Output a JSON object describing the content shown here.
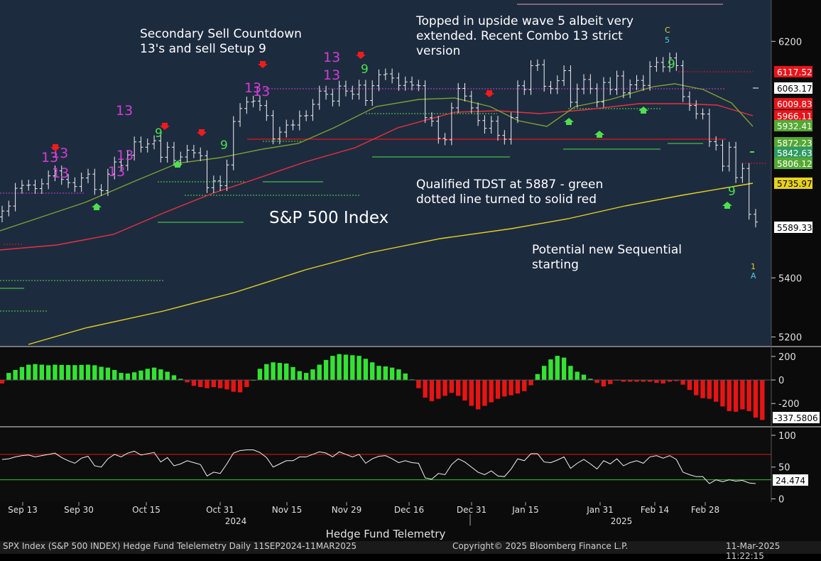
{
  "chart_data": [
    {
      "type": "candlestick",
      "title": "S&P 500 Index",
      "ylim": [
        5170,
        6340
      ],
      "x_tick_labels": [
        "Sep 13",
        "Sep 30",
        "Oct 15",
        "Oct 31",
        "Nov 15",
        "Nov 29",
        "Dec 16",
        "Dec 31",
        "Jan 15",
        "Jan 31",
        "Feb 14",
        "Feb 28"
      ],
      "year_labels": [
        "2024",
        "2025"
      ],
      "y_ticks": [
        5200,
        5400,
        6200
      ],
      "price_tags": [
        {
          "label": "6117.52",
          "color": "#e8141b"
        },
        {
          "label": "6063.17",
          "color": "#ffffff"
        },
        {
          "label": "6009.83",
          "color": "#e8141b"
        },
        {
          "label": "5966.11",
          "color": "#e8141b"
        },
        {
          "label": "5932.41",
          "color": "#55a832"
        },
        {
          "label": "5872.23",
          "color": "#55a832"
        },
        {
          "label": "5842.63",
          "color": "#2f9a63"
        },
        {
          "label": "5806.12",
          "color": "#55a832"
        },
        {
          "label": "5735.97",
          "color": "#e6d21e"
        },
        {
          "label": "5589.33",
          "color": "#ffffff"
        }
      ],
      "series": [
        {
          "name": "Close",
          "values": [
            5626,
            5643,
            5703,
            5713,
            5714,
            5702,
            5718,
            5745,
            5762,
            5733,
            5722,
            5709,
            5738,
            5751,
            5699,
            5695,
            5751,
            5792,
            5780,
            5815,
            5860,
            5842,
            5853,
            5864,
            5808,
            5842,
            5797,
            5809,
            5832,
            5823,
            5813,
            5705,
            5728,
            5712,
            5782,
            5929,
            5973,
            5995,
            5998,
            5983,
            5949,
            5870,
            5893,
            5917,
            5917,
            5948,
            5949,
            5987,
            6032,
            6021,
            5998,
            6049,
            6032,
            6021,
            6052,
            6000,
            6050,
            6087,
            6090,
            6076,
            6051,
            6063,
            6052,
            6050,
            5942,
            5930,
            5872,
            5867,
            5975,
            6041,
            6015,
            5975,
            5932,
            5906,
            5930,
            5882,
            5869,
            5942,
            6050,
            6037,
            6118,
            6121,
            6048,
            6040,
            6067,
            6101,
            5994,
            6039,
            6071,
            6040,
            5995,
            6061,
            6037,
            6083,
            6026,
            6053,
            6068,
            6051,
            6115,
            6129,
            6114,
            6144,
            6118,
            6013,
            5983,
            5955,
            5954,
            5861,
            5849,
            5778,
            5842,
            5739,
            5770,
            5615,
            5589
          ]
        },
        {
          "name": "MA 200",
          "values": []
        },
        {
          "name": "MA 50",
          "values": []
        },
        {
          "name": "MA 20",
          "values": []
        }
      ],
      "annotations": [
        {
          "text": "Secondary Sell Countdown\n13's and sell Setup 9"
        },
        {
          "text": "Topped in upside wave 5 albeit very\nextended. Recent Combo 13 strict\nversion"
        },
        {
          "text": "Qualified TDST at 5887 - green\ndotted line turned to solid red"
        },
        {
          "text": "Potential new Sequential\nstarting"
        }
      ]
    },
    {
      "type": "bar",
      "name": "Momentum oscillator",
      "ylim": [
        -380,
        260
      ],
      "y_ticks": [
        "200",
        "0",
        "-200"
      ],
      "last_value_label": "-337.5806",
      "values": [
        -30,
        60,
        85,
        110,
        130,
        135,
        130,
        125,
        130,
        128,
        127,
        126,
        128,
        130,
        125,
        112,
        105,
        85,
        60,
        55,
        65,
        80,
        95,
        105,
        90,
        70,
        40,
        10,
        -20,
        -50,
        -60,
        -70,
        -60,
        -70,
        -80,
        -100,
        -105,
        -60,
        0,
        95,
        135,
        150,
        145,
        140,
        110,
        75,
        60,
        90,
        130,
        170,
        205,
        220,
        215,
        210,
        205,
        180,
        150,
        120,
        115,
        105,
        90,
        55,
        5,
        -70,
        -150,
        -180,
        -160,
        -135,
        -110,
        -135,
        -175,
        -220,
        -250,
        -220,
        -190,
        -160,
        -140,
        -130,
        -115,
        -95,
        -45,
        50,
        120,
        175,
        205,
        190,
        120,
        70,
        45,
        10,
        -25,
        -55,
        -35,
        -5,
        -15,
        -15,
        -15,
        -15,
        -15,
        -25,
        -30,
        -15,
        -10,
        -40,
        -85,
        -130,
        -155,
        -160,
        -185,
        -225,
        -265,
        -270,
        -250,
        -265,
        -320,
        -340
      ]
    },
    {
      "type": "line",
      "name": "RSI",
      "ylim": [
        -5,
        110
      ],
      "y_ticks": [
        "100",
        "50",
        "0"
      ],
      "last_value_label": "24.474",
      "values": [
        62,
        63,
        66,
        68,
        69,
        66,
        68,
        70,
        72,
        65,
        60,
        56,
        64,
        67,
        52,
        50,
        63,
        70,
        66,
        72,
        75,
        69,
        71,
        73,
        58,
        65,
        52,
        55,
        60,
        57,
        54,
        36,
        42,
        40,
        55,
        72,
        76,
        77,
        77,
        73,
        65,
        50,
        55,
        60,
        60,
        66,
        66,
        70,
        74,
        72,
        66,
        74,
        70,
        66,
        70,
        56,
        63,
        67,
        68,
        63,
        57,
        60,
        57,
        56,
        33,
        31,
        40,
        38,
        54,
        63,
        58,
        50,
        42,
        38,
        44,
        36,
        35,
        47,
        63,
        60,
        71,
        71,
        58,
        57,
        61,
        66,
        48,
        56,
        62,
        55,
        47,
        60,
        55,
        63,
        52,
        57,
        60,
        56,
        66,
        68,
        64,
        68,
        62,
        42,
        38,
        35,
        35,
        24,
        30,
        27,
        30,
        28,
        29,
        25,
        24
      ]
    }
  ],
  "footer": {
    "center_label": "Hedge Fund Telemetry",
    "left": "SPX Index (S&P 500 INDEX) Hedge Fund Telelemetry  Daily 11SEP2024-11MAR2025",
    "middle": "Copyright© 2025 Bloomberg Finance L.P.",
    "right": "11-Mar-2025 11:22:15"
  },
  "td_labels": [
    {
      "text": "13",
      "color": "#d23dd6"
    },
    {
      "text": "13",
      "color": "#d23dd6"
    },
    {
      "text": "13",
      "color": "#d23dd6"
    },
    {
      "text": "13",
      "color": "#d23dd6"
    },
    {
      "text": "13",
      "color": "#d23dd6"
    },
    {
      "text": "13",
      "color": "#d23dd6"
    },
    {
      "text": "13",
      "color": "#d23dd6"
    },
    {
      "text": "13",
      "color": "#d23dd6"
    },
    {
      "text": "13",
      "color": "#d23dd6"
    },
    {
      "text": "13",
      "color": "#d23dd6"
    },
    {
      "text": "9",
      "color": "#4de04d"
    },
    {
      "text": "9",
      "color": "#4de04d"
    },
    {
      "text": "9",
      "color": "#4de04d"
    },
    {
      "text": "9",
      "color": "#4de04d"
    },
    {
      "text": "9",
      "color": "#4de04d"
    },
    {
      "text": "C",
      "color": "#e6d21e"
    },
    {
      "text": "5",
      "color": "#4fd0e0"
    },
    {
      "text": "1",
      "color": "#e6d21e"
    },
    {
      "text": "A",
      "color": "#4fd0e0"
    }
  ]
}
